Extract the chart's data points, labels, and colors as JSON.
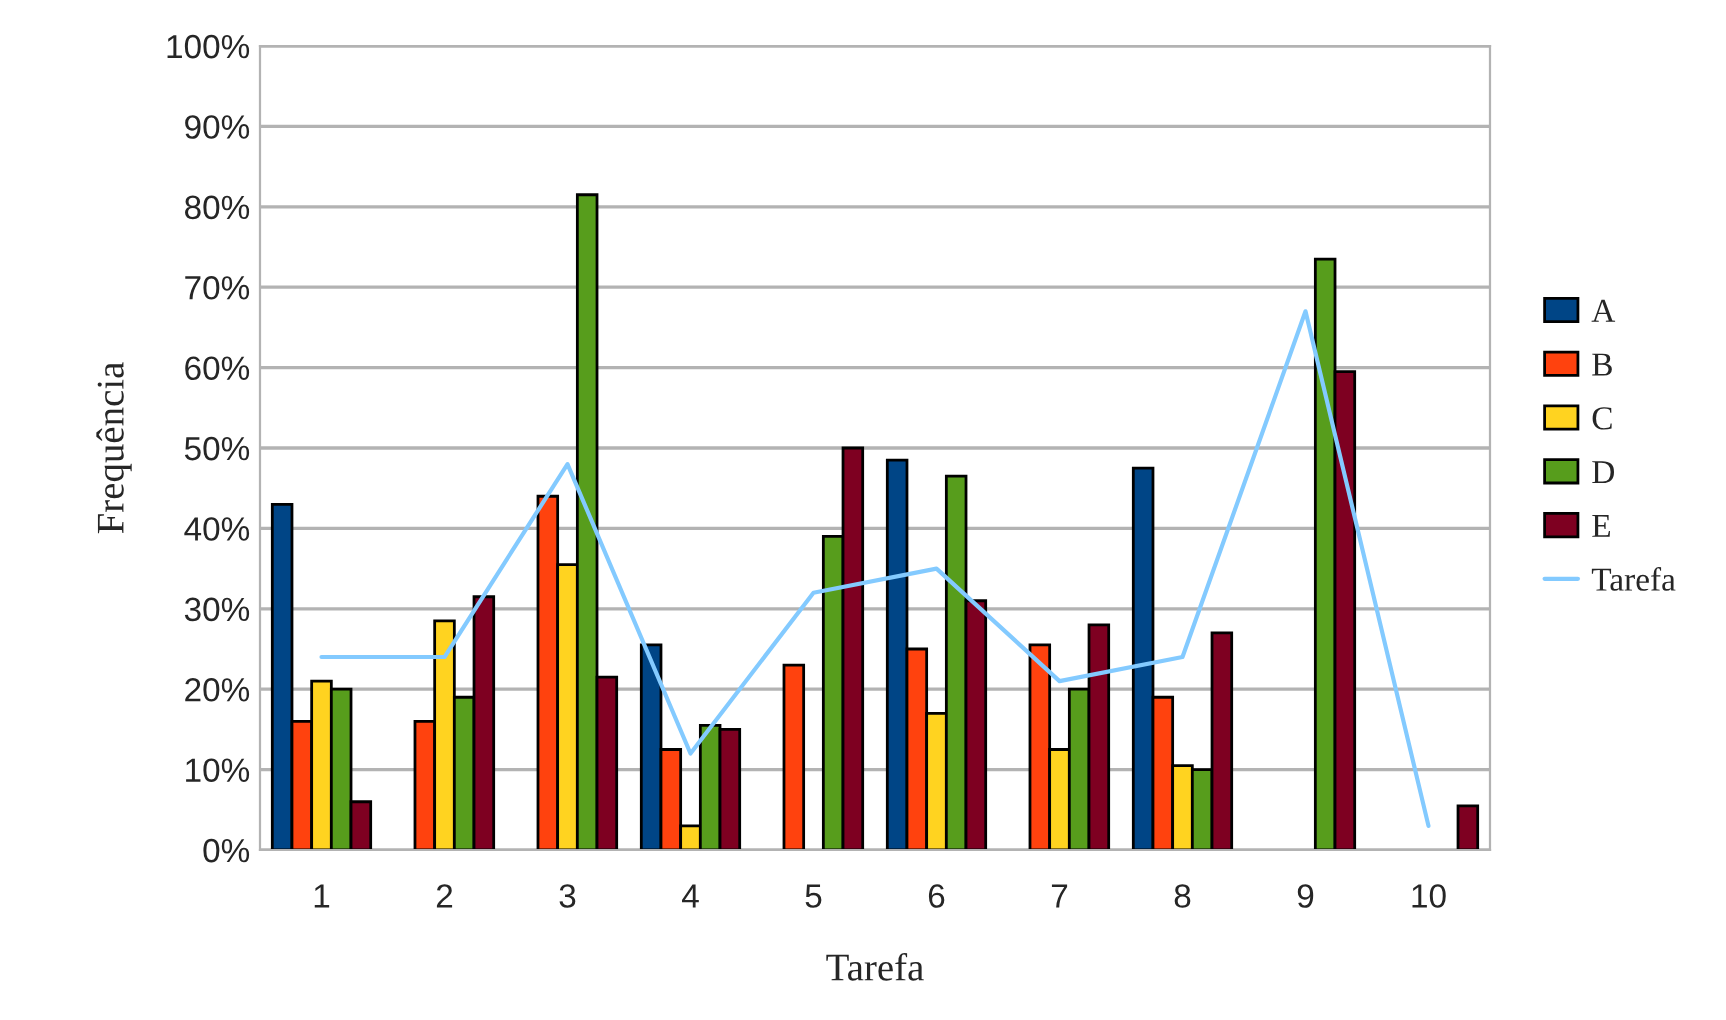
{
  "chart_data": {
    "type": "bar",
    "xlabel": "Tarefa",
    "ylabel": "Frequência",
    "categories": [
      "1",
      "2",
      "3",
      "4",
      "5",
      "6",
      "7",
      "8",
      "9",
      "10"
    ],
    "series": [
      {
        "name": "A",
        "color": "#004586",
        "values": [
          43,
          null,
          null,
          25.5,
          null,
          48.5,
          null,
          47.5,
          null,
          null
        ]
      },
      {
        "name": "B",
        "color": "#ff420e",
        "values": [
          16,
          16,
          44,
          12.5,
          23,
          25,
          25.5,
          19,
          null,
          null
        ]
      },
      {
        "name": "C",
        "color": "#ffd320",
        "values": [
          21,
          28.5,
          35.5,
          3,
          null,
          17,
          12.5,
          10.5,
          null,
          null
        ]
      },
      {
        "name": "D",
        "color": "#579d1c",
        "values": [
          20,
          19,
          81.5,
          15.5,
          39,
          46.5,
          20,
          10,
          73.5,
          null
        ]
      },
      {
        "name": "E",
        "color": "#7e0021",
        "values": [
          6,
          31.5,
          21.5,
          15,
          50,
          31,
          28,
          27,
          59.5,
          5.5
        ]
      },
      {
        "name": "Tarefa",
        "type": "line",
        "color": "#83caff",
        "values": [
          24,
          24,
          48,
          12,
          32,
          35,
          21,
          24,
          67,
          3
        ]
      }
    ],
    "ylim": [
      0,
      100
    ],
    "yticks": [
      {
        "value": 0,
        "label": "0%"
      },
      {
        "value": 10,
        "label": "10%"
      },
      {
        "value": 20,
        "label": "20%"
      },
      {
        "value": 30,
        "label": "30%"
      },
      {
        "value": 40,
        "label": "40%"
      },
      {
        "value": 50,
        "label": "50%"
      },
      {
        "value": 60,
        "label": "60%"
      },
      {
        "value": 70,
        "label": "70%"
      },
      {
        "value": 80,
        "label": "80%"
      },
      {
        "value": 90,
        "label": "90%"
      },
      {
        "value": 100,
        "label": "100%"
      }
    ],
    "grid": "y",
    "legend": "right",
    "marker": "none",
    "line_style": "solid"
  }
}
